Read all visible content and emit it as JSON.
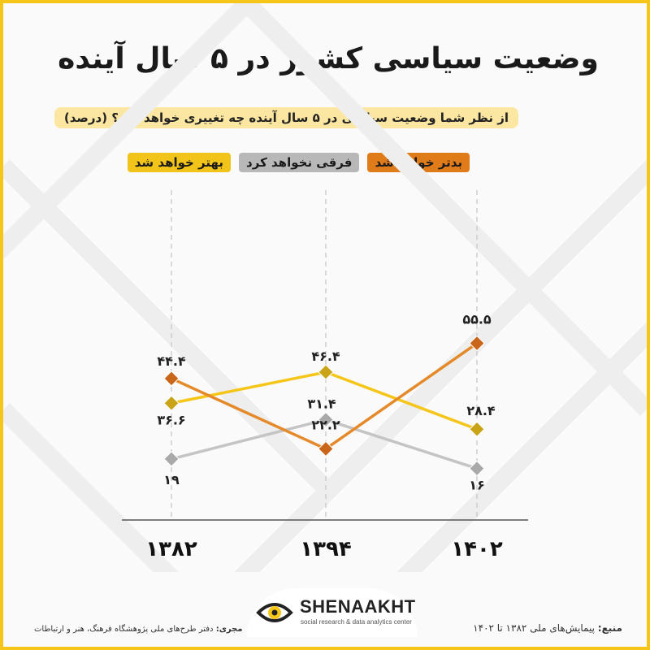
{
  "title": "وضعیت سیاسی کشور در ۵ سال آینده",
  "question": "از نظر شما وضعیت سیاسی در ۵ سال آینده چه تغییری خواهد کرد؟ (درصد)",
  "colors": {
    "worse": "#e07b1a",
    "no_change": "#b8b8b8",
    "better": "#f2c318",
    "frame": "#f5c518",
    "worse_line": "#e58a2a",
    "better_line": "#f5c518",
    "nochange_line": "#c4c4c4",
    "worse_marker": "#c9661a",
    "better_marker": "#caa416",
    "nochange_marker": "#a9a9a9"
  },
  "chart_data": {
    "type": "line",
    "categories": [
      "۱۳۸۲",
      "۱۳۹۴",
      "۱۴۰۲"
    ],
    "series": [
      {
        "name": "بدتر خواهد شد",
        "values": [
          44.4,
          22.2,
          55.5
        ],
        "labels": [
          "۴۴.۴",
          "۲۲.۲",
          "۵۵.۵"
        ]
      },
      {
        "name": "فرقی نخواهد کرد",
        "values": [
          19,
          31.4,
          16
        ],
        "labels": [
          "۱۹",
          "۳۱.۴",
          "۱۶"
        ]
      },
      {
        "name": "بهتر خواهد شد",
        "values": [
          36.6,
          46.4,
          28.4
        ],
        "labels": [
          "۳۶.۶",
          "۴۶.۴",
          "۲۸.۴"
        ]
      }
    ],
    "ylim": [
      0,
      70
    ],
    "grid": "vertical dashed",
    "legend": "top"
  },
  "footer": {
    "source_label": "منبع:",
    "source_text": "پیمایش‌های ملی ۱۳۸۲ تا ۱۴۰۲",
    "exec_label": "مجری:",
    "exec_text": "دفتر طرح‌های ملی پژوهشگاه فرهنگ، هنر و ارتباطات",
    "brand": "SHENAAKHT",
    "brand_sub": "social research & data analytics center"
  }
}
